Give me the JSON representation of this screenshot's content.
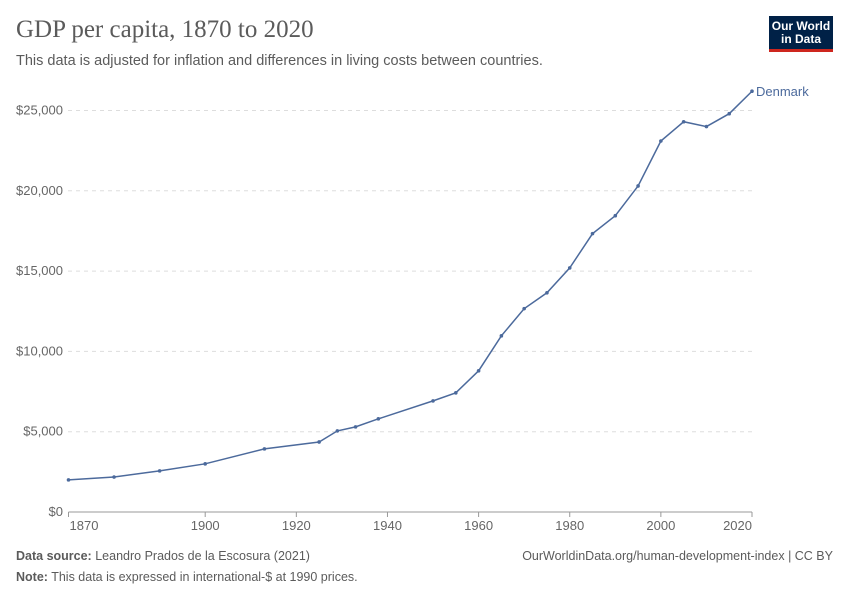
{
  "header": {
    "title": "GDP per capita, 1870 to 2020",
    "subtitle": "This data is adjusted for inflation and differences in living costs between countries.",
    "logo": "Our World in Data"
  },
  "footer": {
    "source_label": "Data source:",
    "source": "Leandro Prados de la Escosura (2021)",
    "url": "OurWorldinData.org/human-development-index | CC BY",
    "note_label": "Note:",
    "note": "This data is expressed in international-$ at 1990 prices."
  },
  "chart_data": {
    "type": "line",
    "title": "GDP per capita, 1870 to 2020",
    "xlabel": "",
    "ylabel": "",
    "xlim": [
      1870,
      2020
    ],
    "ylim": [
      0,
      26500
    ],
    "grid": "horizontal dashed",
    "legend": "inline-right",
    "x_ticks": [
      1870,
      1900,
      1920,
      1940,
      1960,
      1980,
      2000,
      2020
    ],
    "y_ticks": [
      0,
      5000,
      10000,
      15000,
      20000,
      25000
    ],
    "y_tick_labels": [
      "$0",
      "$5,000",
      "$10,000",
      "$15,000",
      "$20,000",
      "$25,000"
    ],
    "series": [
      {
        "name": "Denmark",
        "color": "#4c6a9c",
        "x": [
          1870,
          1880,
          1890,
          1900,
          1913,
          1925,
          1929,
          1933,
          1938,
          1950,
          1955,
          1960,
          1965,
          1970,
          1975,
          1980,
          1985,
          1990,
          1995,
          2000,
          2005,
          2010,
          2015,
          2020
        ],
        "y": [
          2000,
          2180,
          2560,
          3000,
          3930,
          4360,
          5050,
          5300,
          5800,
          6920,
          7420,
          8790,
          10970,
          12660,
          13650,
          15200,
          17330,
          18450,
          20300,
          23100,
          24300,
          24000,
          24800,
          26200
        ]
      }
    ]
  }
}
